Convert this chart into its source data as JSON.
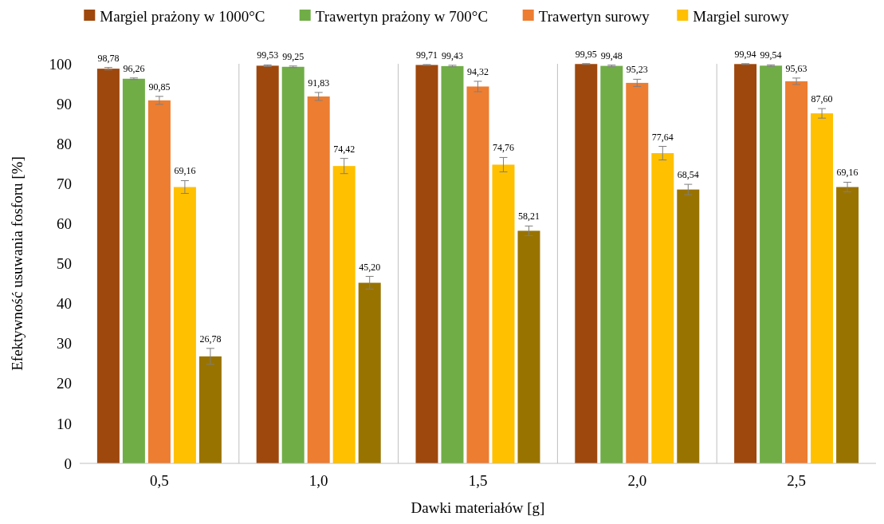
{
  "chart_data": {
    "type": "bar",
    "xlabel": "Dawki materiałów [g]",
    "ylabel": "Efektywność usuwania fosforu [%]",
    "categories": [
      "0,5",
      "1,0",
      "1,5",
      "2,0",
      "2,5"
    ],
    "series": [
      {
        "name": "Margiel prażony w 1000°C",
        "color": "#9e480e",
        "values": [
          98.78,
          99.53,
          99.71,
          99.95,
          99.94
        ],
        "errors": [
          0.3,
          0.2,
          0.1,
          0.1,
          0.1
        ],
        "value_labels": [
          "98,78",
          "99,53",
          "99,71",
          "99,95",
          "99,94"
        ]
      },
      {
        "name": "Trawertyn prażony w 700°C",
        "color": "#70ad47",
        "values": [
          96.26,
          99.25,
          99.43,
          99.48,
          99.54
        ],
        "errors": [
          0.2,
          0.2,
          0.2,
          0.2,
          0.2
        ],
        "value_labels": [
          "96,26",
          "99,25",
          "99,43",
          "99,48",
          "99,54"
        ]
      },
      {
        "name": "Trawertyn surowy",
        "color": "#ed7d31",
        "values": [
          90.85,
          91.83,
          94.32,
          95.23,
          95.63
        ],
        "errors": [
          1.0,
          1.0,
          1.3,
          0.9,
          0.8
        ],
        "value_labels": [
          "90,85",
          "91,83",
          "94,32",
          "95,23",
          "95,63"
        ]
      },
      {
        "name": "Margiel surowy",
        "color": "#ffc000",
        "values": [
          69.16,
          74.42,
          74.76,
          77.64,
          87.6
        ],
        "errors": [
          1.6,
          1.9,
          1.8,
          1.7,
          1.2
        ],
        "value_labels": [
          "69,16",
          "74,42",
          "74,76",
          "77,64",
          "87,60"
        ]
      },
      {
        "color": "#997300",
        "values": [
          26.78,
          45.2,
          58.21,
          68.54,
          69.16
        ],
        "errors": [
          2.0,
          1.6,
          1.2,
          1.3,
          1.2
        ],
        "value_labels": [
          "26,78",
          "45,20",
          "58,21",
          "68,54",
          "69,16"
        ]
      }
    ],
    "ylim": [
      0,
      100
    ],
    "yticks": [
      0,
      10,
      20,
      30,
      40,
      50,
      60,
      70,
      80,
      90,
      100
    ],
    "grid": "x",
    "legend": "top"
  }
}
